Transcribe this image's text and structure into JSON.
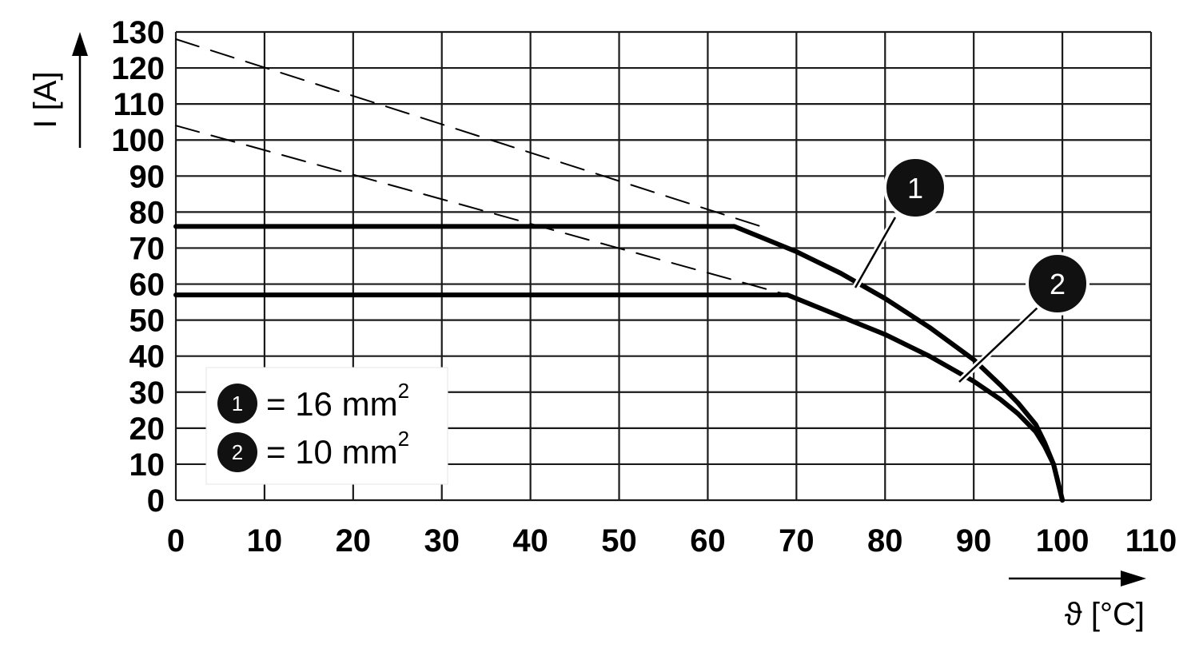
{
  "chart_data": {
    "type": "line",
    "xlabel": "ϑ [°C]",
    "ylabel": "I [A]",
    "xlim": [
      0,
      110
    ],
    "ylim": [
      0,
      130
    ],
    "xticks": [
      0,
      10,
      20,
      30,
      40,
      50,
      60,
      70,
      80,
      90,
      100,
      110
    ],
    "yticks": [
      0,
      10,
      20,
      30,
      40,
      50,
      60,
      70,
      80,
      90,
      100,
      110,
      120,
      130
    ],
    "grid": true,
    "legend_position": "bottom-left",
    "series": [
      {
        "name": "16 mm",
        "marker": "1",
        "legend_label": "= 16 mm",
        "legend_sup": "2",
        "style": "solid",
        "x": [
          0,
          63,
          66,
          70,
          75,
          80,
          85,
          90,
          93,
          95,
          97,
          98,
          99,
          100
        ],
        "y": [
          76,
          76,
          73,
          69,
          63,
          56,
          48,
          39,
          32,
          27,
          21,
          16,
          10,
          0
        ]
      },
      {
        "name": "10 mm",
        "marker": "2",
        "legend_label": "= 10 mm",
        "legend_sup": "2",
        "style": "solid",
        "x": [
          0,
          69,
          72,
          75,
          80,
          85,
          90,
          93,
          95,
          97,
          98,
          99,
          100
        ],
        "y": [
          57,
          57,
          54,
          51,
          46,
          40,
          33,
          28,
          24,
          19,
          15,
          10,
          0
        ]
      },
      {
        "style": "dashed",
        "x": [
          0,
          66
        ],
        "y": [
          128,
          76
        ]
      },
      {
        "style": "dashed",
        "x": [
          0,
          69
        ],
        "y": [
          104,
          57
        ]
      }
    ],
    "annotations": [
      {
        "text": "1",
        "series": 0
      },
      {
        "text": "2",
        "series": 1
      }
    ]
  },
  "colors": {
    "line": "#000000",
    "grid": "#1a1a1a",
    "background": "#ffffff",
    "marker_fill": "#111111",
    "marker_text": "#ffffff"
  }
}
